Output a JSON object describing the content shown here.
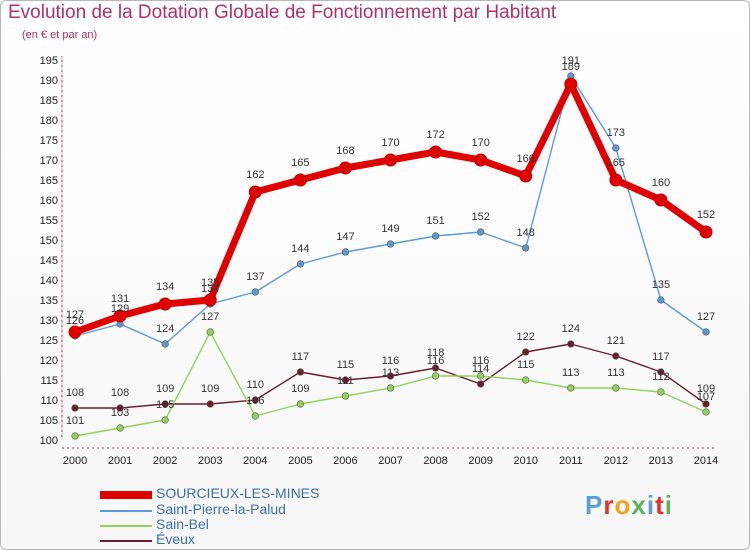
{
  "title": "Evolution de la Dotation Globale de Fonctionnement par Habitant",
  "subtitle": "(en € et par an)",
  "logo_text": "Proxiti",
  "colors": {
    "title": "#b0306a",
    "sourcieux": "#e00000",
    "saint_pierre": "#5a9bd5",
    "sain_bel": "#8fd35a",
    "eveux": "#6b1f2a"
  },
  "chart_data": {
    "type": "line",
    "title": "Evolution de la Dotation Globale de Fonctionnement par Habitant",
    "subtitle": "(en € et par an)",
    "xlabel": "",
    "ylabel": "",
    "x": [
      "2000",
      "2001",
      "2002",
      "2003",
      "2004",
      "2005",
      "2006",
      "2007",
      "2008",
      "2009",
      "2010",
      "2011",
      "2012",
      "2013",
      "2014"
    ],
    "ylim": [
      100,
      195
    ],
    "yticks": [
      100,
      105,
      110,
      115,
      120,
      125,
      130,
      135,
      140,
      145,
      150,
      155,
      160,
      165,
      170,
      175,
      180,
      185,
      190,
      195
    ],
    "grid": false,
    "legend_position": "bottom-left",
    "series": [
      {
        "name": "SOURCIEUX-LES-MINES",
        "color": "#e00000",
        "values": [
          127,
          131,
          134,
          135,
          162,
          165,
          168,
          170,
          172,
          170,
          166,
          189,
          165,
          160,
          152
        ]
      },
      {
        "name": "Saint-Pierre-la-Palud",
        "color": "#5a9bd5",
        "values": [
          126,
          129,
          124,
          134,
          137,
          144,
          147,
          149,
          151,
          152,
          148,
          191,
          173,
          135,
          127
        ]
      },
      {
        "name": "Sain-Bel",
        "color": "#8fd35a",
        "values": [
          101,
          103,
          105,
          127,
          106,
          109,
          111,
          113,
          116,
          116,
          115,
          113,
          113,
          112,
          107
        ]
      },
      {
        "name": "Éveux",
        "color": "#6b1f2a",
        "values": [
          108,
          108,
          109,
          109,
          110,
          117,
          115,
          116,
          118,
          114,
          122,
          124,
          121,
          117,
          109
        ]
      }
    ]
  }
}
